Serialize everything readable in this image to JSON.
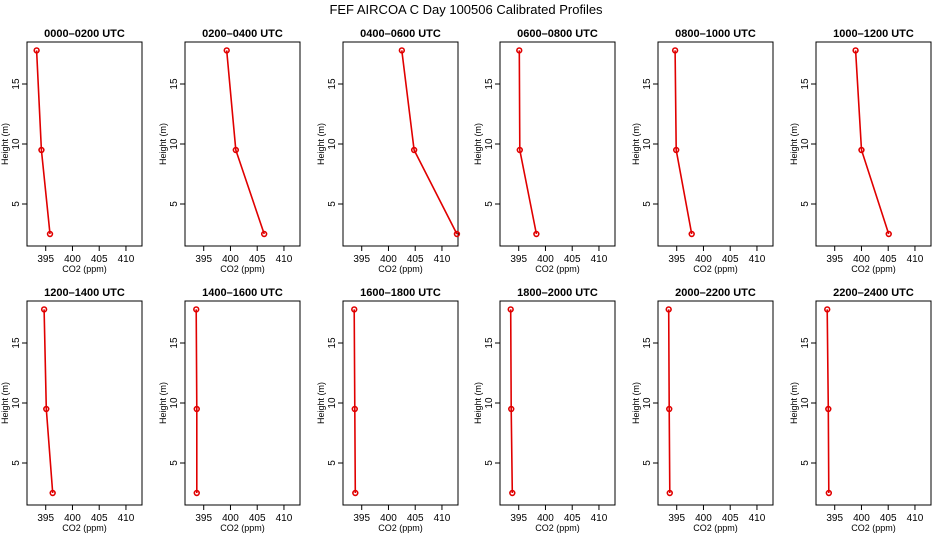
{
  "chart_data": {
    "title": "FEF AIRCOA C  Day 100506  Calibrated Profiles",
    "type": "line",
    "xlabel": "CO2 (ppm)",
    "ylabel": "Height (m)",
    "xlim": [
      391.5,
      413
    ],
    "ylim": [
      1.5,
      18.5
    ],
    "xticks": [
      "395",
      "400",
      "405",
      "410"
    ],
    "yticks": [
      "5",
      "10",
      "15"
    ],
    "heights": [
      2.5,
      9.5,
      17.8
    ],
    "panels": [
      {
        "title": "0000–0200 UTC",
        "values": [
          395.8,
          394.2,
          393.3
        ]
      },
      {
        "title": "0200–0400 UTC",
        "values": [
          406.3,
          401.0,
          399.3
        ]
      },
      {
        "title": "0400–0600 UTC",
        "values": [
          412.8,
          404.8,
          402.5
        ]
      },
      {
        "title": "0600–0800 UTC",
        "values": [
          398.3,
          395.2,
          395.1
        ]
      },
      {
        "title": "0800–1000 UTC",
        "values": [
          397.8,
          394.9,
          394.7
        ]
      },
      {
        "title": "1000–1200 UTC",
        "values": [
          405.1,
          400.0,
          398.9
        ]
      },
      {
        "title": "1200–1400 UTC",
        "values": [
          396.3,
          395.1,
          394.7
        ]
      },
      {
        "title": "1400–1600 UTC",
        "values": [
          393.7,
          393.7,
          393.6
        ]
      },
      {
        "title": "1600–1800 UTC",
        "values": [
          393.8,
          393.7,
          393.6
        ]
      },
      {
        "title": "1800–2000 UTC",
        "values": [
          393.8,
          393.6,
          393.5
        ]
      },
      {
        "title": "2000–2200 UTC",
        "values": [
          393.7,
          393.6,
          393.5
        ]
      },
      {
        "title": "2200–2400 UTC",
        "values": [
          393.9,
          393.8,
          393.6
        ]
      }
    ]
  }
}
